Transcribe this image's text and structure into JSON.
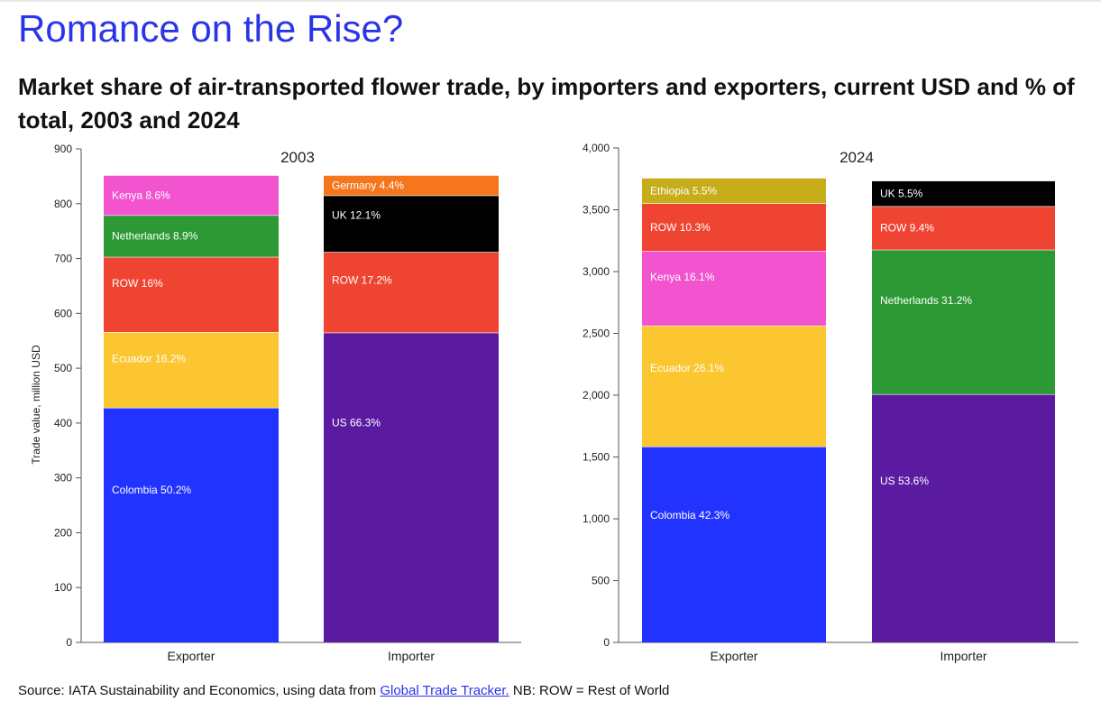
{
  "headline": "Romance on the Rise?",
  "subtitle": "Market share of air-transported flower trade, by importers and exporters, current USD and % of total, 2003 and 2024",
  "source": {
    "prefix": "Source: IATA Sustainability and Economics, using data from ",
    "link_text": "Global Trade Tracker.",
    "suffix": " NB: ROW = Rest of World"
  },
  "colors": {
    "headline": "#2a35e8",
    "Colombia": "#2233ff",
    "Ecuador": "#fbc630",
    "ROW": "#f04432",
    "Netherlands": "#2d9934",
    "Kenya": "#f254cf",
    "US": "#5a1ba1",
    "UK": "#000000",
    "Germany": "#f5761c",
    "Ethiopia": "#c7ad1a"
  },
  "chart_data": [
    {
      "type": "bar",
      "stacked": true,
      "title": "2003",
      "ylabel": "Trade value, million USD",
      "ylim": [
        0,
        900
      ],
      "yticks": [
        0,
        100,
        200,
        300,
        400,
        500,
        600,
        700,
        800,
        900
      ],
      "ytick_labels": [
        "0",
        "100",
        "200",
        "300",
        "400",
        "500",
        "600",
        "700",
        "800",
        "900"
      ],
      "categories": [
        "Exporter",
        "Importer"
      ],
      "stacks": [
        {
          "category": "Exporter",
          "segments": [
            {
              "name": "Colombia",
              "value": 428,
              "label": "Colombia 50.2%"
            },
            {
              "name": "Ecuador",
              "value": 138,
              "label": "Ecuador 16.2%"
            },
            {
              "name": "ROW",
              "value": 137,
              "label": "ROW 16%"
            },
            {
              "name": "Netherlands",
              "value": 76,
              "label": "Netherlands 8.9%"
            },
            {
              "name": "Kenya",
              "value": 73,
              "label": "Kenya 8.6%"
            }
          ]
        },
        {
          "category": "Importer",
          "segments": [
            {
              "name": "US",
              "value": 565,
              "label": "US 66.3%"
            },
            {
              "name": "ROW",
              "value": 147,
              "label": "ROW 17.2%"
            },
            {
              "name": "UK",
              "value": 103,
              "label": "UK 12.1%"
            },
            {
              "name": "Germany",
              "value": 37,
              "label": "Germany 4.4%"
            }
          ]
        }
      ]
    },
    {
      "type": "bar",
      "stacked": true,
      "title": "2024",
      "ylabel": "",
      "ylim": [
        0,
        4000
      ],
      "yticks": [
        0,
        500,
        1000,
        1500,
        2000,
        2500,
        3000,
        3500,
        4000
      ],
      "ytick_labels": [
        "0",
        "500",
        "1,000",
        "1,500",
        "2,000",
        "2,500",
        "3,000",
        "3,500",
        "4,000"
      ],
      "categories": [
        "Exporter",
        "Importer"
      ],
      "stacks": [
        {
          "category": "Exporter",
          "segments": [
            {
              "name": "Colombia",
              "value": 1585,
              "label": "Colombia 42.3%"
            },
            {
              "name": "Ecuador",
              "value": 978,
              "label": "Ecuador 26.1%"
            },
            {
              "name": "Kenya",
              "value": 603,
              "label": "Kenya 16.1%"
            },
            {
              "name": "ROW",
              "value": 386,
              "label": "ROW 10.3%"
            },
            {
              "name": "Ethiopia",
              "value": 206,
              "label": "Ethiopia 5.5%"
            }
          ]
        },
        {
          "category": "Importer",
          "segments": [
            {
              "name": "US",
              "value": 2008,
              "label": "US 53.6%"
            },
            {
              "name": "Netherlands",
              "value": 1169,
              "label": "Netherlands 31.2%"
            },
            {
              "name": "ROW",
              "value": 352,
              "label": "ROW 9.4%"
            },
            {
              "name": "UK",
              "value": 206,
              "label": "UK 5.5%"
            }
          ]
        }
      ]
    }
  ]
}
